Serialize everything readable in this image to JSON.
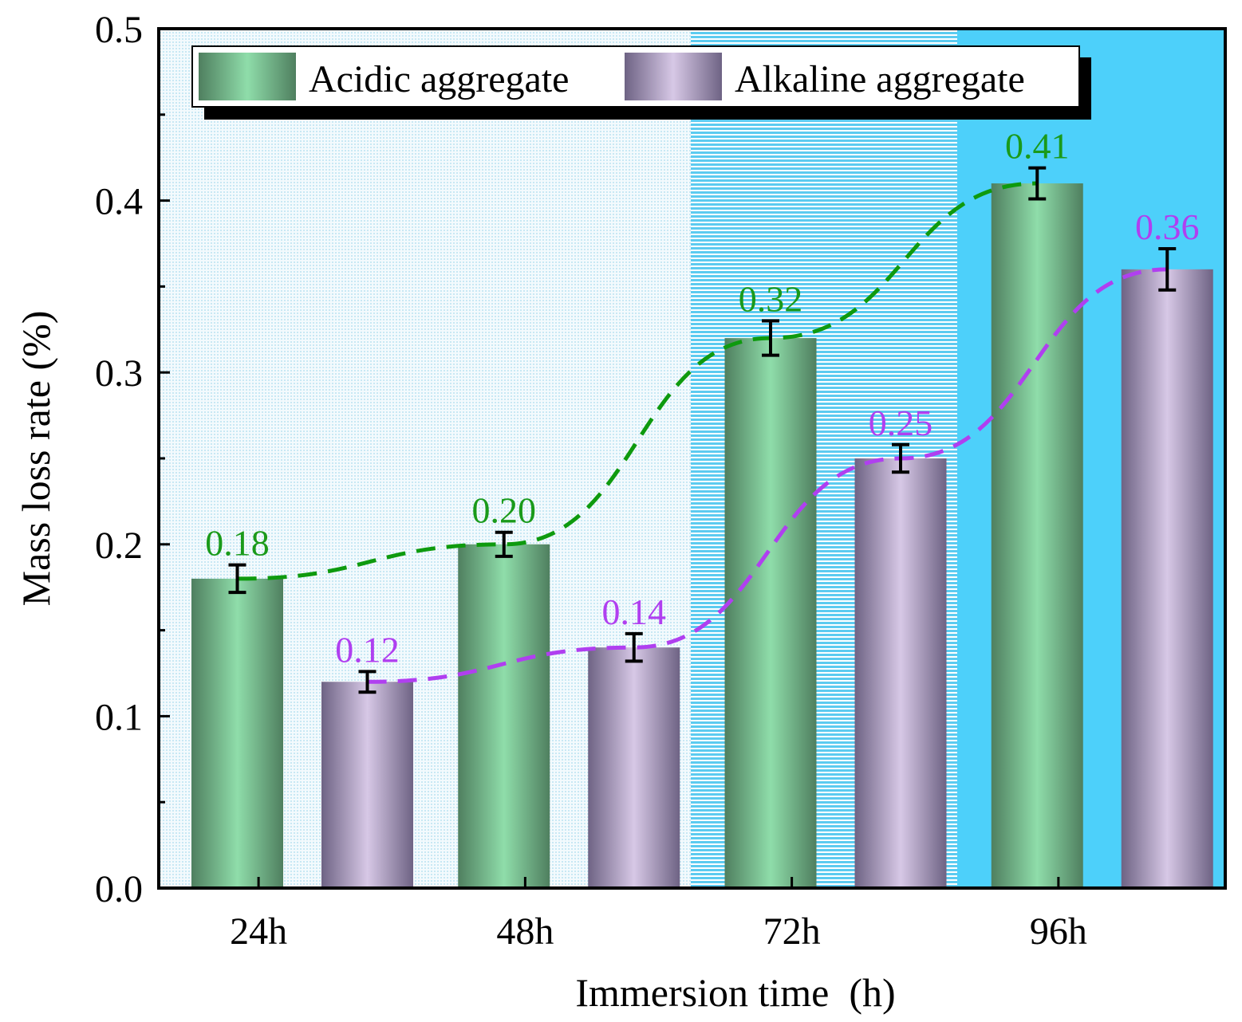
{
  "chart_data": {
    "type": "bar",
    "xlabel": "Immersion time  (h)",
    "ylabel": "Mass loss rate (%)",
    "ylim": [
      0.0,
      0.5
    ],
    "yticks": [
      0.0,
      0.1,
      0.2,
      0.3,
      0.4,
      0.5
    ],
    "ytick_labels": [
      "0.0",
      "0.1",
      "0.2",
      "0.3",
      "0.4",
      "0.5"
    ],
    "categories": [
      "24h",
      "48h",
      "72h",
      "96h"
    ],
    "legend_position": "top",
    "grid": false,
    "series": [
      {
        "name": "Acidic aggregate",
        "values": [
          0.18,
          0.2,
          0.32,
          0.41
        ],
        "errors": [
          0.008,
          0.007,
          0.01,
          0.009
        ],
        "labels": [
          "0.18",
          "0.20",
          "0.32",
          "0.41"
        ],
        "label_color": "#1a9a1a",
        "trend_color": "#0e9a0e",
        "bar_edge": "#4f7f5f",
        "bar_center": "#8fddaa"
      },
      {
        "name": "Alkaline aggregate",
        "values": [
          0.12,
          0.14,
          0.25,
          0.36
        ],
        "errors": [
          0.006,
          0.008,
          0.008,
          0.012
        ],
        "labels": [
          "0.12",
          "0.14",
          "0.25",
          "0.36"
        ],
        "label_color": "#b03ff0",
        "trend_color": "#b03ff0",
        "bar_edge": "#6e6384",
        "bar_center": "#d7c8e6"
      }
    ],
    "background_bands": [
      {
        "from": "24h",
        "to": "48h",
        "style": "dotted-light-blue"
      },
      {
        "from": "72h",
        "to": "72h",
        "style": "striped-blue"
      },
      {
        "from": "96h",
        "to": "96h",
        "style": "solid-blue"
      }
    ],
    "colors": {
      "band_light": "#e6f4fb",
      "band_stripe": "#5ccbf0",
      "band_solid": "#4dd0fa",
      "axis": "#000000"
    }
  }
}
